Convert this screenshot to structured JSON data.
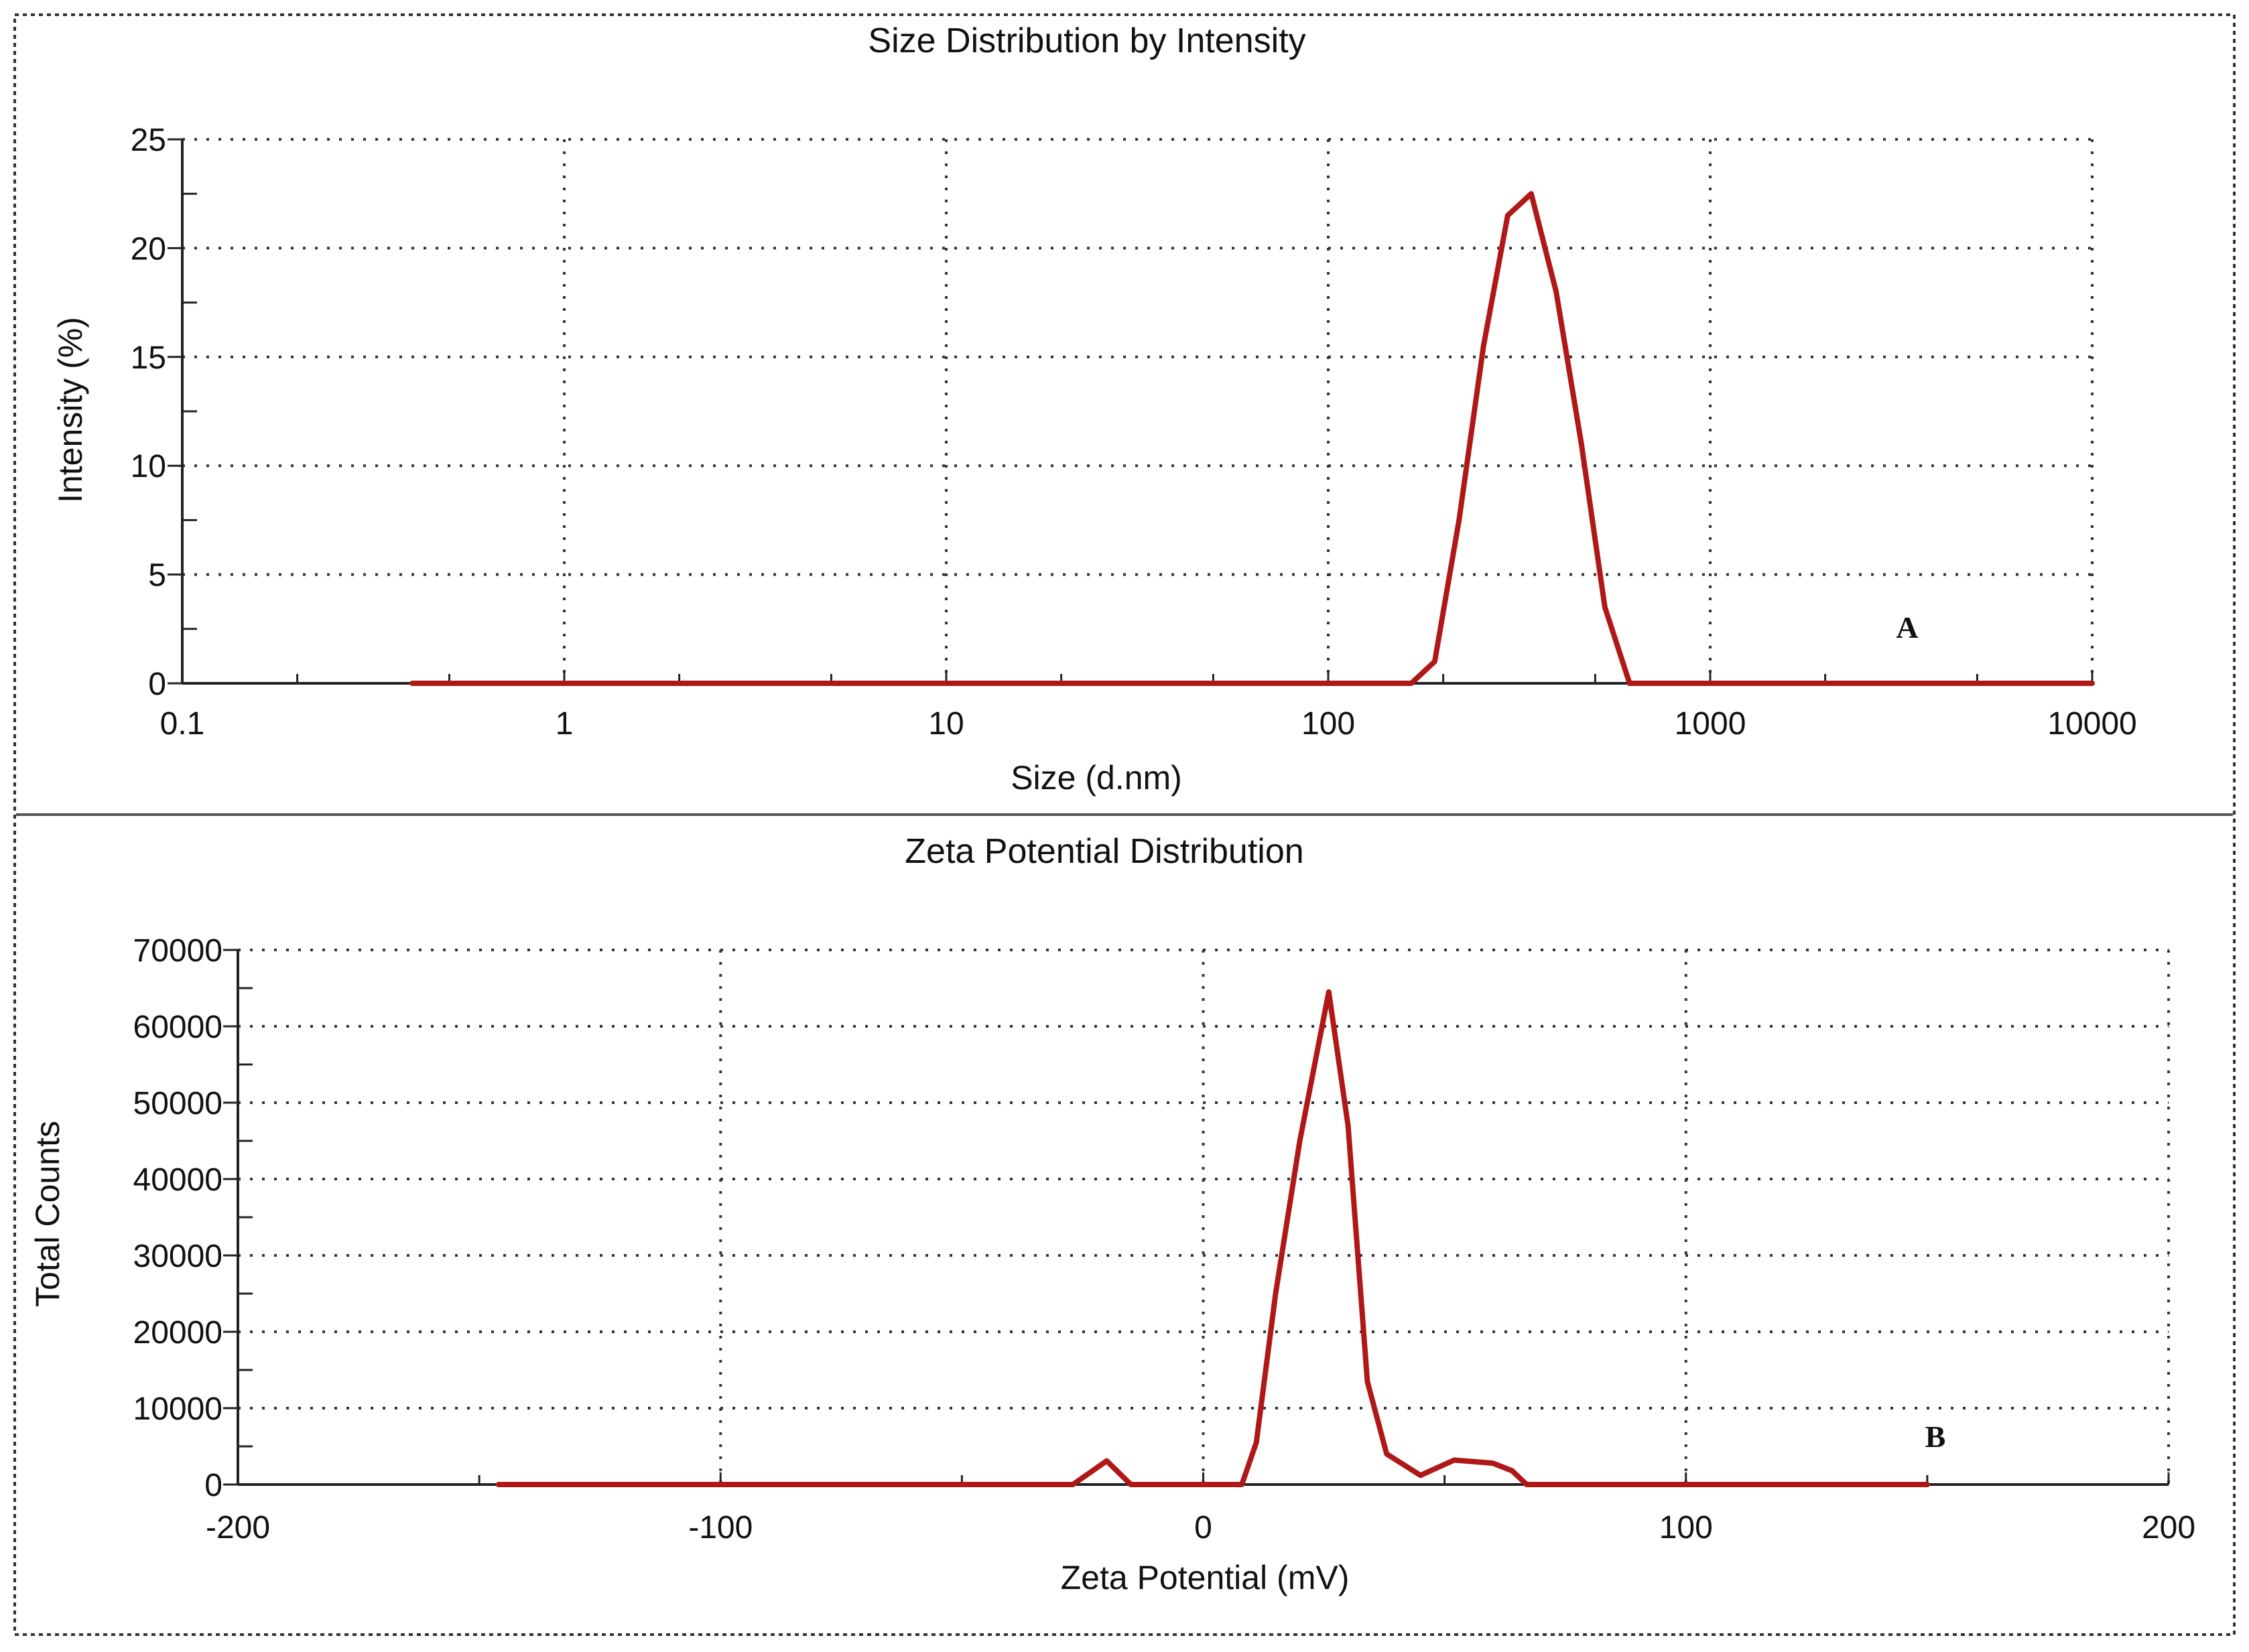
{
  "colors": {
    "series": "#b01818",
    "text": "#111111"
  },
  "chart_data": [
    {
      "type": "line",
      "title": "Size Distribution by Intensity",
      "xlabel": "Size (d.nm)",
      "ylabel": "Intensity (%)",
      "xscale": "log",
      "xlim": [
        0.1,
        10000
      ],
      "ylim": [
        0,
        25
      ],
      "xticks": [
        "0.1",
        "1",
        "10",
        "100",
        "1000",
        "10000"
      ],
      "yticks": [
        "0",
        "5",
        "10",
        "15",
        "20",
        "25"
      ],
      "grid": true,
      "annotation": "A",
      "series": [
        {
          "x": [
            0.4,
            1,
            10,
            100,
            165,
            190,
            220,
            255,
            295,
            340,
            395,
            460,
            530,
            615,
            10000
          ],
          "y": [
            0,
            0,
            0,
            0,
            0,
            1,
            7.5,
            15.5,
            21.5,
            22.5,
            18,
            11,
            3.5,
            0,
            0
          ]
        }
      ]
    },
    {
      "type": "line",
      "title": "Zeta Potential Distribution",
      "xlabel": "Zeta Potential (mV)",
      "ylabel": "Total Counts",
      "xlim": [
        -200,
        200
      ],
      "ylim": [
        0,
        70000
      ],
      "xticks": [
        "-200",
        "-100",
        "0",
        "100",
        "200"
      ],
      "yticks": [
        "0",
        "10000",
        "20000",
        "30000",
        "40000",
        "50000",
        "60000",
        "70000"
      ],
      "grid": true,
      "annotation": "B",
      "series": [
        {
          "x": [
            -146,
            -27,
            -20,
            -15,
            8,
            11,
            15,
            20,
            26,
            30,
            34,
            38,
            45,
            52,
            60,
            64,
            67,
            150
          ],
          "y": [
            0,
            0,
            3100,
            0,
            0,
            5500,
            25000,
            45000,
            64500,
            47000,
            13500,
            4000,
            1200,
            3200,
            2800,
            1800,
            0,
            0
          ]
        }
      ]
    }
  ]
}
